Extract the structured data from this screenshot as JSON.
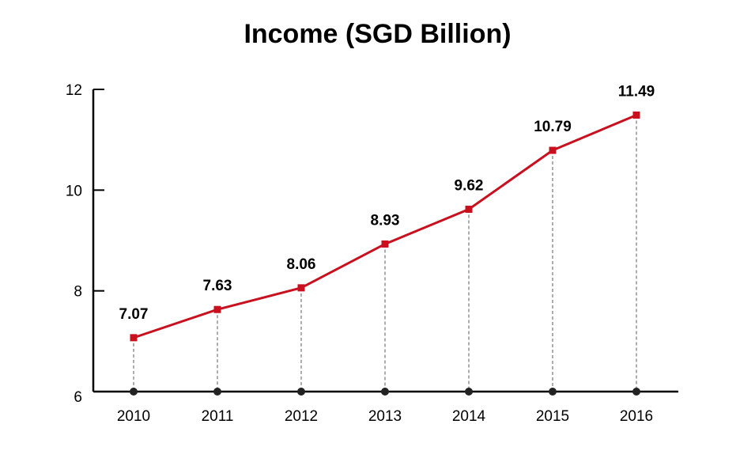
{
  "chart_data": {
    "type": "line",
    "title": "Income (SGD Billion)",
    "xlabel": "",
    "ylabel": "",
    "categories": [
      "2010",
      "2011",
      "2012",
      "2013",
      "2014",
      "2015",
      "2016"
    ],
    "values": [
      7.07,
      7.63,
      8.06,
      8.93,
      9.62,
      10.79,
      11.49
    ],
    "data_labels": [
      "7.07",
      "7.63",
      "8.06",
      "8.93",
      "9.62",
      "10.79",
      "11.49"
    ],
    "ylim": [
      6,
      12
    ],
    "yticks": [
      6,
      8,
      10,
      12
    ],
    "grid": false,
    "legend": "none",
    "colors": {
      "line": "#c8101e",
      "marker": "#c8101e",
      "drop_line": "#888888",
      "base_dot": "#222222",
      "axis": "#000000"
    }
  }
}
